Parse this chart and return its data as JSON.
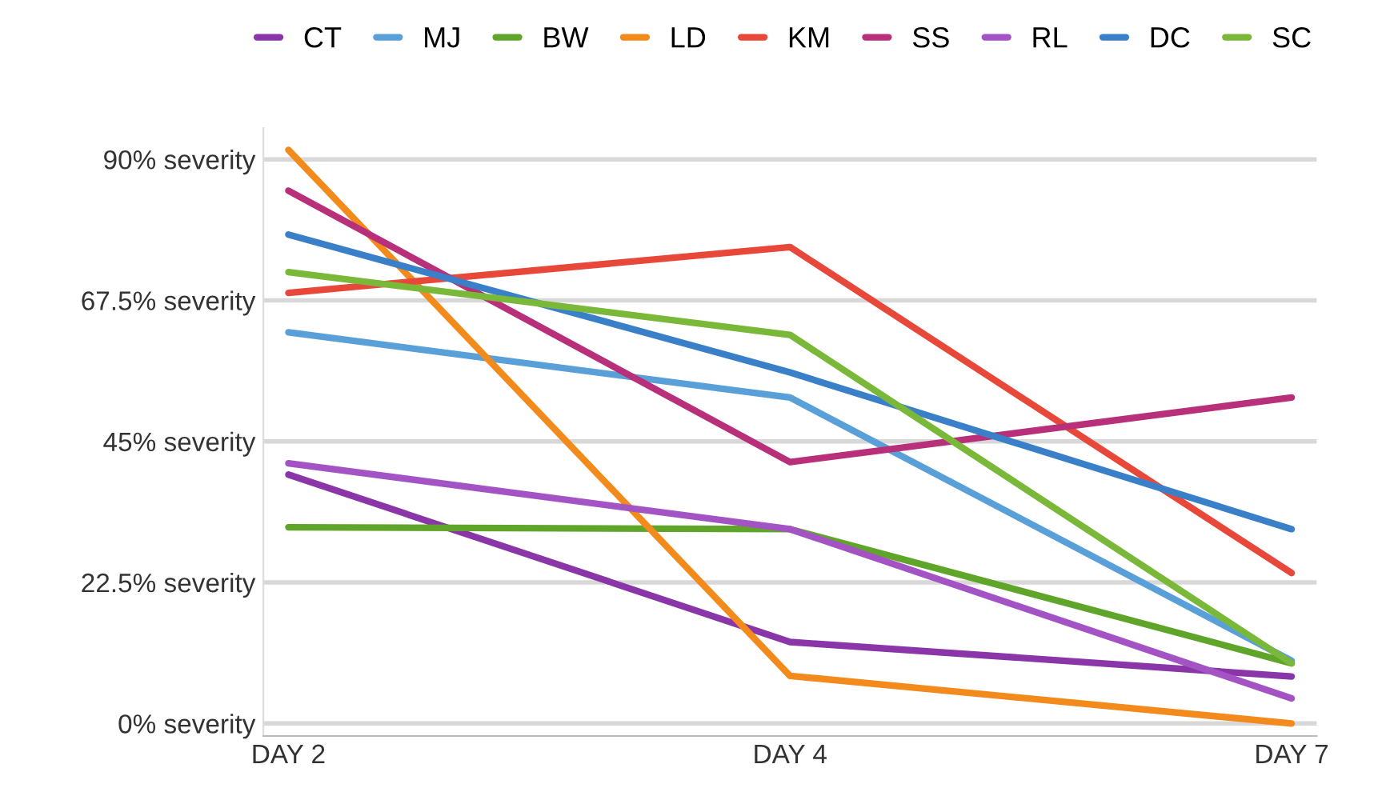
{
  "chart_data": {
    "type": "line",
    "categories": [
      "DAY 2",
      "DAY 4",
      "DAY 7"
    ],
    "series": [
      {
        "name": "CT",
        "color": "#8a35a8",
        "values": [
          39.7,
          13,
          7.5
        ]
      },
      {
        "name": "MJ",
        "color": "#5aa0d8",
        "values": [
          62.4,
          52,
          10
        ]
      },
      {
        "name": "BW",
        "color": "#5fa52a",
        "values": [
          31.3,
          31,
          9.6
        ]
      },
      {
        "name": "LD",
        "color": "#f28a1c",
        "values": [
          91.5,
          7.6,
          0
        ]
      },
      {
        "name": "KM",
        "color": "#e8483a",
        "values": [
          68.7,
          76,
          24
        ]
      },
      {
        "name": "SS",
        "color": "#b8307a",
        "values": [
          85,
          41.7,
          52
        ]
      },
      {
        "name": "RL",
        "color": "#a453c4",
        "values": [
          41.5,
          31,
          4
        ]
      },
      {
        "name": "DC",
        "color": "#3a80c8",
        "values": [
          78,
          56,
          31
        ]
      },
      {
        "name": "SC",
        "color": "#7ab83a",
        "values": [
          72,
          62,
          9.6
        ]
      }
    ],
    "ylim": [
      -2,
      95
    ],
    "yticks": [
      {
        "value": 0,
        "label": "0% severity"
      },
      {
        "value": 22.5,
        "label": "22.5% severity"
      },
      {
        "value": 45,
        "label": "45% severity"
      },
      {
        "value": 67.5,
        "label": "67.5% severity"
      },
      {
        "value": 90,
        "label": "90% severity"
      }
    ],
    "grid": "y",
    "legend": "top right",
    "marker": "none",
    "line_style": "solid"
  }
}
